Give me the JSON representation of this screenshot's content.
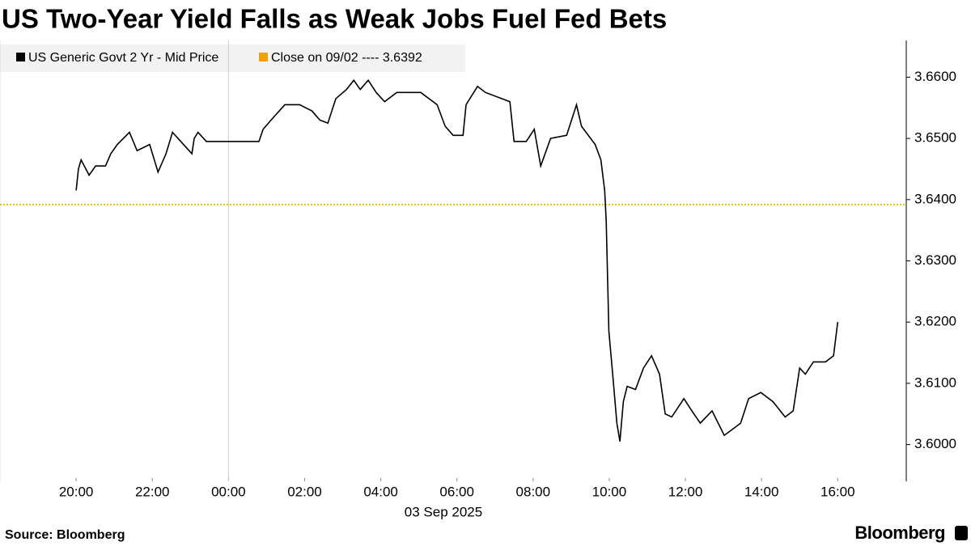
{
  "chart_data": {
    "type": "line",
    "title": "US Two-Year Yield Falls as Weak Jobs Fuel Fed Bets",
    "x_label": "03 Sep 2025",
    "source": "Source: Bloomberg",
    "brand": "Bloomberg",
    "x": [
      0,
      0.06,
      0.13,
      0.34,
      0.51,
      0.77,
      0.91,
      1.08,
      1.4,
      1.6,
      1.93,
      2.15,
      2.36,
      2.53,
      3.04,
      3.1,
      3.2,
      3.42,
      3.95,
      4.8,
      4.91,
      5.12,
      5.48,
      5.87,
      6.19,
      6.4,
      6.61,
      6.82,
      7.1,
      7.29,
      7.46,
      7.67,
      7.88,
      8.1,
      8.42,
      9.05,
      9.48,
      9.69,
      9.9,
      10.16,
      10.24,
      10.54,
      10.75,
      11.39,
      11.5,
      11.82,
      12.03,
      12.2,
      12.46,
      12.88,
      13.14,
      13.27,
      13.63,
      13.78,
      13.88,
      13.92,
      13.99,
      14.09,
      14.2,
      14.28,
      14.37,
      14.47,
      14.69,
      14.9,
      15.11,
      15.32,
      15.47,
      15.64,
      15.96,
      16.17,
      16.39,
      16.7,
      17.02,
      17.24,
      17.45,
      17.66,
      17.98,
      18.3,
      18.62,
      18.83,
      19.0,
      19.15,
      19.36,
      19.68,
      19.89,
      20.0
    ],
    "series": [
      {
        "name": "US Generic Govt 2 Yr - Mid Price",
        "color": "#000000",
        "values": [
          3.6415,
          3.645,
          3.6465,
          3.644,
          3.6455,
          3.6455,
          3.6475,
          3.649,
          3.651,
          3.648,
          3.649,
          3.6445,
          3.6475,
          3.651,
          3.6475,
          3.65,
          3.651,
          3.6495,
          3.6495,
          3.6495,
          3.6515,
          3.653,
          3.6555,
          3.6555,
          3.6545,
          3.653,
          3.6525,
          3.6565,
          3.658,
          3.6595,
          3.658,
          3.6595,
          3.6575,
          3.656,
          3.6575,
          3.6575,
          3.6555,
          3.652,
          3.6505,
          3.6505,
          3.6555,
          3.6585,
          3.6575,
          3.656,
          3.6495,
          3.6495,
          3.6515,
          3.6455,
          3.65,
          3.6505,
          3.6555,
          3.652,
          3.649,
          3.6465,
          3.6415,
          3.6365,
          3.6185,
          3.6115,
          3.6035,
          3.6005,
          3.607,
          3.6095,
          3.609,
          3.6125,
          3.6145,
          3.6115,
          3.605,
          3.6045,
          3.6075,
          3.6055,
          3.6035,
          3.6055,
          3.6015,
          3.6025,
          3.6035,
          3.6075,
          3.6085,
          3.607,
          3.6045,
          3.6055,
          3.6125,
          3.6115,
          3.6135,
          3.6135,
          3.6145,
          3.62
        ]
      }
    ],
    "reference_line": {
      "label": "Close on 09/02 ---- 3.6392",
      "value": 3.6392,
      "color": "#f0a000"
    },
    "xlim": [
      -2,
      21.8
    ],
    "xticks": [
      {
        "value": 0,
        "label": "20:00"
      },
      {
        "value": 2,
        "label": "22:00"
      },
      {
        "value": 4,
        "label": "00:00"
      },
      {
        "value": 6,
        "label": "02:00"
      },
      {
        "value": 8,
        "label": "04:00"
      },
      {
        "value": 10,
        "label": "06:00"
      },
      {
        "value": 12,
        "label": "08:00"
      },
      {
        "value": 14,
        "label": "10:00"
      },
      {
        "value": 16,
        "label": "12:00"
      },
      {
        "value": 18,
        "label": "14:00"
      },
      {
        "value": 20,
        "label": "16:00"
      }
    ],
    "ylim": [
      3.594,
      3.666
    ],
    "yticks": [
      {
        "value": 3.6,
        "label": "3.6000"
      },
      {
        "value": 3.61,
        "label": "3.6100"
      },
      {
        "value": 3.62,
        "label": "3.6200"
      },
      {
        "value": 3.63,
        "label": "3.6300"
      },
      {
        "value": 3.64,
        "label": "3.6400"
      },
      {
        "value": 3.65,
        "label": "3.6500"
      },
      {
        "value": 3.66,
        "label": "3.6600"
      }
    ],
    "y_axis_side": "right"
  }
}
